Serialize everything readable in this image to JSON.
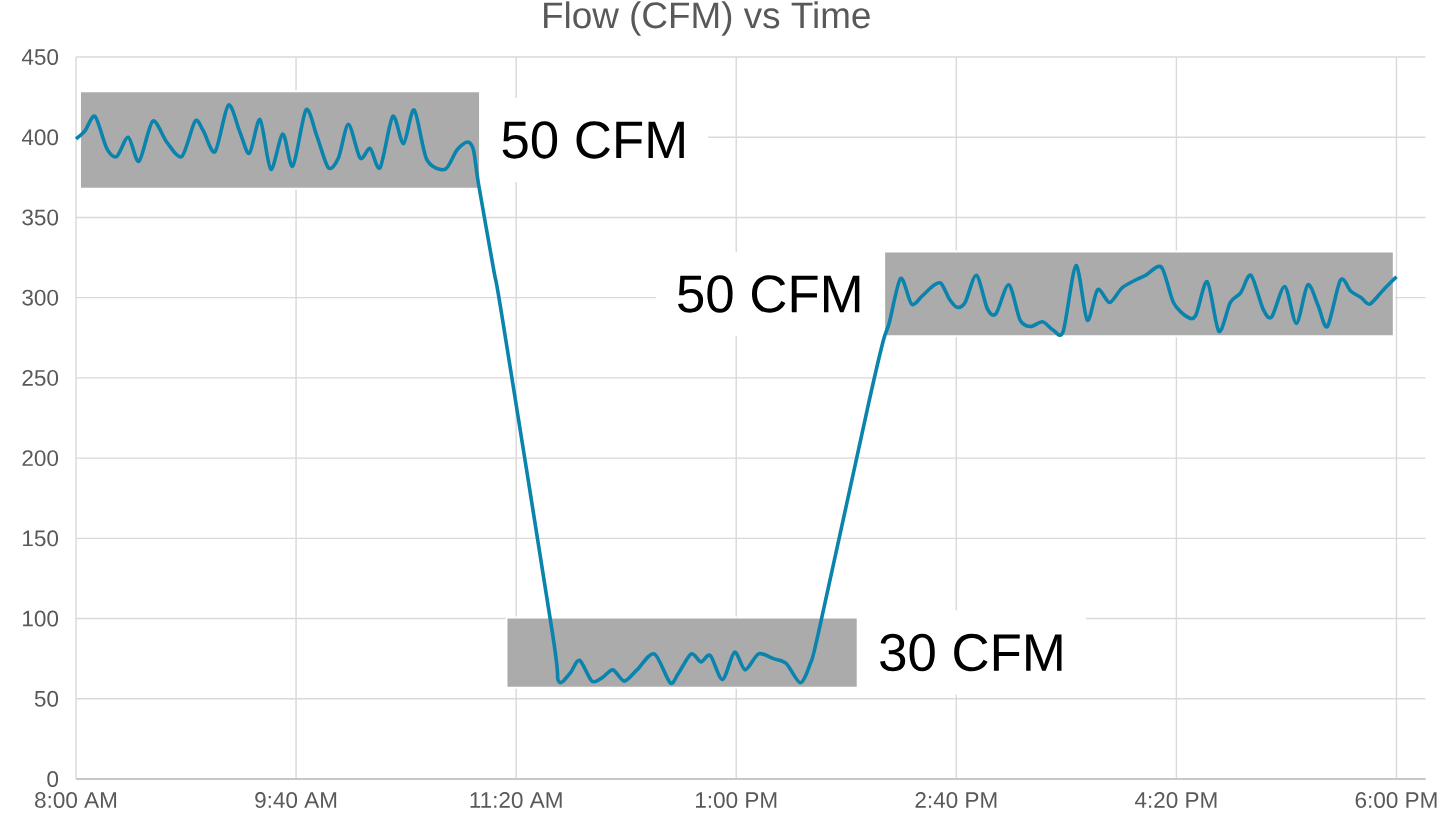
{
  "chart_data": {
    "type": "line",
    "title": "Flow (CFM) vs Time",
    "x": [
      8.0,
      8.068,
      8.144,
      8.233,
      8.308,
      8.396,
      8.477,
      8.581,
      8.687,
      8.801,
      8.902,
      8.964,
      9.053,
      9.154,
      9.242,
      9.313,
      9.394,
      9.475,
      9.566,
      9.642,
      9.742,
      9.823,
      9.911,
      9.987,
      10.063,
      10.152,
      10.227,
      10.303,
      10.399,
      10.48,
      10.561,
      10.657,
      10.795,
      10.884,
      10.964,
      11.01,
      11.048,
      11.164,
      11.227,
      11.61,
      11.654,
      11.742,
      11.813,
      11.907,
      11.983,
      12.066,
      12.152,
      12.248,
      12.379,
      12.5,
      12.563,
      12.659,
      12.733,
      12.803,
      12.896,
      12.987,
      13.068,
      13.169,
      13.283,
      13.379,
      13.485,
      13.561,
      13.625,
      14.005,
      14.113,
      14.158,
      14.245,
      14.328,
      14.407,
      14.485,
      14.55,
      14.615,
      14.673,
      14.733,
      14.819,
      14.902,
      14.967,
      15.064,
      15.15,
      15.228,
      15.32,
      15.398,
      15.476,
      15.573,
      15.658,
      15.737,
      15.828,
      15.92,
      16.024,
      16.102,
      16.22,
      16.311,
      16.415,
      16.48,
      16.567,
      16.655,
      16.742,
      16.82,
      16.898,
      16.989,
      17.055,
      17.154,
      17.242,
      17.328,
      17.407,
      17.477,
      17.576,
      17.655,
      17.733,
      17.798,
      17.902,
      18.0
    ],
    "values": [
      399,
      404,
      413,
      393,
      388,
      400,
      385,
      410,
      397,
      388,
      410,
      404,
      391,
      420,
      403,
      390,
      411,
      380,
      402,
      382,
      417,
      401,
      381,
      387,
      408,
      387,
      393,
      381,
      413,
      396,
      417,
      386,
      380,
      392,
      397,
      392,
      371,
      317,
      288,
      90,
      61,
      66,
      74,
      61,
      63,
      68,
      61,
      68,
      78,
      60,
      66,
      78,
      73,
      77,
      62,
      79,
      68,
      78,
      75,
      72,
      60,
      72,
      92,
      235,
      273,
      284,
      312,
      296,
      301,
      307,
      309,
      299,
      294,
      297,
      314,
      293,
      290,
      308,
      286,
      282,
      285,
      280,
      279,
      320,
      286,
      305,
      297,
      306,
      311,
      314,
      319,
      297,
      288,
      289,
      310,
      279,
      297,
      303,
      314,
      293,
      288,
      307,
      284,
      308,
      295,
      282,
      311,
      304,
      300,
      296,
      305,
      313
    ],
    "color": "#0a83ad",
    "xlim": [
      8,
      18.22
    ],
    "xticks": [
      {
        "value": 8,
        "label": "8:00 AM"
      },
      {
        "value": 9.6667,
        "label": "9:40 AM"
      },
      {
        "value": 11.3333,
        "label": "11:20 AM"
      },
      {
        "value": 13,
        "label": "1:00 PM"
      },
      {
        "value": 14.6667,
        "label": "2:40 PM"
      },
      {
        "value": 16.3333,
        "label": "4:20 PM"
      },
      {
        "value": 18,
        "label": "6:00 PM"
      }
    ],
    "ylim": [
      0,
      450
    ],
    "yticks": [
      0,
      50,
      100,
      150,
      200,
      250,
      300,
      350,
      400,
      450
    ],
    "grid": true,
    "marker": "none",
    "bands": [
      {
        "axis": "x",
        "from": 8.03,
        "to": 11.06,
        "label": "50 CFM",
        "color": "#ababab"
      },
      {
        "axis": "x",
        "from": 11.26,
        "to": 13.92,
        "label": "30 CFM",
        "color": "#ababab"
      },
      {
        "axis": "x",
        "from": 14.12,
        "to": 17.98,
        "label": "50 CFM",
        "color": "#ababab"
      }
    ]
  }
}
